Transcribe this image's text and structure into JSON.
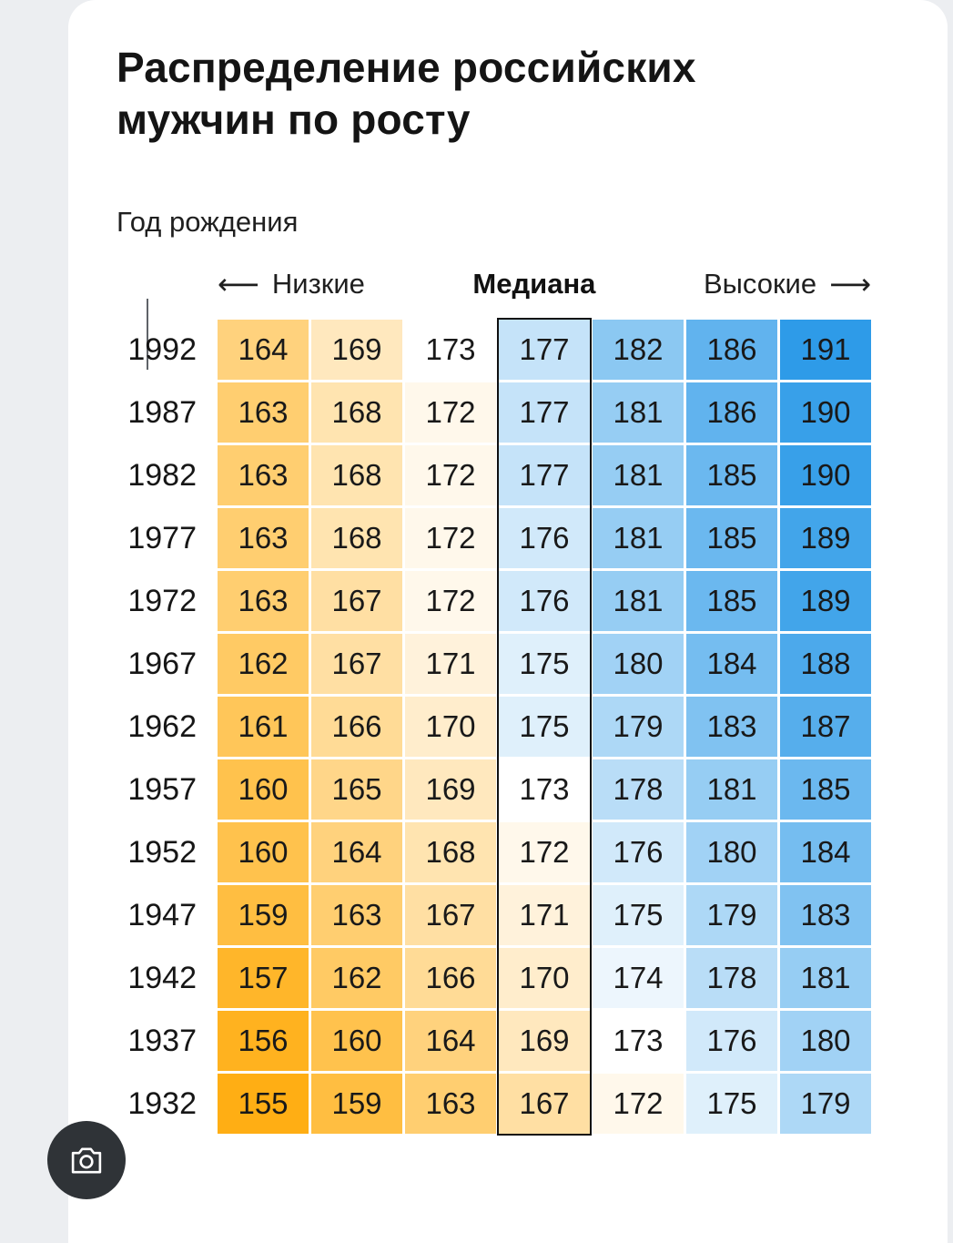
{
  "page": {
    "title": "Распределение российских мужчин по росту"
  },
  "lens_button": {
    "icon": "camera"
  },
  "chart_data": {
    "type": "heatmap",
    "title": "Распределение российских мужчин по росту",
    "row_axis_label": "Год рождения",
    "headers": {
      "left_arrow": "⟵",
      "low_label": "Низкие",
      "median_label": "Медиана",
      "high_label": "Высокие",
      "right_arrow": "⟶"
    },
    "median_col_index": 3,
    "rows": [
      {
        "year": "1992",
        "values": [
          164,
          169,
          173,
          177,
          182,
          186,
          191
        ]
      },
      {
        "year": "1987",
        "values": [
          163,
          168,
          172,
          177,
          181,
          186,
          190
        ]
      },
      {
        "year": "1982",
        "values": [
          163,
          168,
          172,
          177,
          181,
          185,
          190
        ]
      },
      {
        "year": "1977",
        "values": [
          163,
          168,
          172,
          176,
          181,
          185,
          189
        ]
      },
      {
        "year": "1972",
        "values": [
          163,
          167,
          172,
          176,
          181,
          185,
          189
        ]
      },
      {
        "year": "1967",
        "values": [
          162,
          167,
          171,
          175,
          180,
          184,
          188
        ]
      },
      {
        "year": "1962",
        "values": [
          161,
          166,
          170,
          175,
          179,
          183,
          187
        ]
      },
      {
        "year": "1957",
        "values": [
          160,
          165,
          169,
          173,
          178,
          181,
          185
        ]
      },
      {
        "year": "1952",
        "values": [
          160,
          164,
          168,
          172,
          176,
          180,
          184
        ]
      },
      {
        "year": "1947",
        "values": [
          159,
          163,
          167,
          171,
          175,
          179,
          183
        ]
      },
      {
        "year": "1942",
        "values": [
          157,
          162,
          166,
          170,
          174,
          178,
          181
        ]
      },
      {
        "year": "1937",
        "values": [
          156,
          160,
          164,
          169,
          173,
          176,
          180
        ]
      },
      {
        "year": "1932",
        "values": [
          155,
          159,
          163,
          167,
          172,
          175,
          179
        ]
      }
    ],
    "color_scale": {
      "low_color": "#FFAE14",
      "mid_color": "#FFFFFF",
      "high_color": "#2E9BE8",
      "domain": [
        155,
        173,
        191
      ]
    }
  }
}
